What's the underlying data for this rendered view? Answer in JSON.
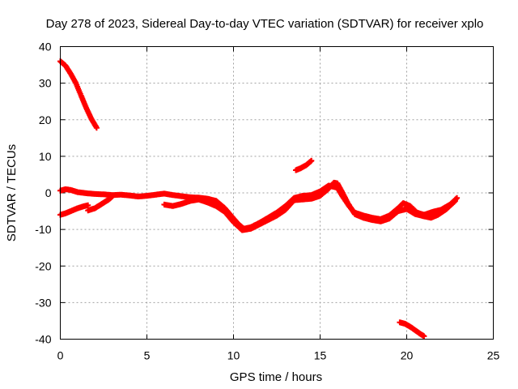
{
  "chart_data": {
    "type": "scatter",
    "title": "Day 278 of 2023, Sidereal Day-to-day VTEC variation (SDTVAR) for receiver xplo",
    "xlabel": "GPS time / hours",
    "ylabel": "SDTVAR / TECUs",
    "xlim": [
      0,
      25
    ],
    "ylim": [
      -40,
      40
    ],
    "xticks": [
      0,
      5,
      10,
      15,
      20,
      25
    ],
    "yticks": [
      -40,
      -30,
      -20,
      -10,
      0,
      10,
      20,
      30,
      40
    ],
    "xtick_labels": [
      "0",
      "5",
      "10",
      "15",
      "20",
      "25"
    ],
    "ytick_labels": [
      "-40",
      "-30",
      "-20",
      "-10",
      "0",
      "10",
      "20",
      "30",
      "40"
    ],
    "grid": true,
    "marker": "+",
    "color": "#ff0000",
    "series": [
      {
        "name": "arc-high-decreasing",
        "points": [
          [
            0.0,
            36.0
          ],
          [
            0.3,
            34.8
          ],
          [
            0.6,
            32.6
          ],
          [
            0.9,
            30.0
          ],
          [
            1.2,
            26.6
          ],
          [
            1.5,
            23.2
          ],
          [
            1.8,
            20.2
          ],
          [
            2.1,
            17.8
          ]
        ]
      },
      {
        "name": "arc-main-upper",
        "points": [
          [
            0.0,
            0.6
          ],
          [
            0.3,
            1.0
          ],
          [
            0.6,
            0.8
          ],
          [
            1.0,
            0.2
          ],
          [
            1.5,
            -0.1
          ],
          [
            2.0,
            -0.3
          ],
          [
            2.5,
            -0.4
          ],
          [
            3.0,
            -0.6
          ],
          [
            3.5,
            -0.5
          ],
          [
            4.0,
            -0.7
          ],
          [
            4.5,
            -1.0
          ],
          [
            5.0,
            -0.8
          ],
          [
            5.5,
            -0.5
          ],
          [
            6.0,
            -0.2
          ],
          [
            6.5,
            -0.6
          ],
          [
            7.0,
            -0.9
          ],
          [
            7.5,
            -1.2
          ],
          [
            8.0,
            -1.3
          ],
          [
            8.5,
            -1.6
          ],
          [
            9.0,
            -2.2
          ],
          [
            9.5,
            -4.2
          ],
          [
            10.0,
            -7.0
          ],
          [
            10.3,
            -8.6
          ],
          [
            10.6,
            -9.8
          ],
          [
            11.0,
            -9.4
          ],
          [
            11.5,
            -8.2
          ],
          [
            12.0,
            -6.8
          ],
          [
            12.5,
            -5.4
          ],
          [
            13.0,
            -3.6
          ],
          [
            13.5,
            -1.4
          ],
          [
            14.0,
            -0.8
          ],
          [
            14.5,
            -0.6
          ],
          [
            15.0,
            0.4
          ],
          [
            15.5,
            2.0
          ],
          [
            16.0,
            1.4
          ],
          [
            16.3,
            -1.0
          ],
          [
            16.7,
            -3.8
          ],
          [
            17.0,
            -5.4
          ],
          [
            17.5,
            -6.2
          ],
          [
            18.0,
            -6.8
          ],
          [
            18.5,
            -7.2
          ],
          [
            19.0,
            -6.2
          ],
          [
            19.5,
            -4.2
          ],
          [
            19.8,
            -2.8
          ],
          [
            20.2,
            -3.6
          ],
          [
            20.6,
            -5.4
          ],
          [
            21.0,
            -6.0
          ],
          [
            21.5,
            -5.2
          ],
          [
            22.0,
            -4.6
          ],
          [
            22.5,
            -3.2
          ],
          [
            22.9,
            -1.4
          ]
        ]
      },
      {
        "name": "arc-main-lower",
        "points": [
          [
            6.0,
            -3.2
          ],
          [
            6.5,
            -3.6
          ],
          [
            7.0,
            -3.0
          ],
          [
            7.5,
            -2.2
          ],
          [
            8.0,
            -1.8
          ],
          [
            8.5,
            -2.6
          ],
          [
            9.0,
            -3.6
          ],
          [
            9.5,
            -5.2
          ],
          [
            10.0,
            -8.0
          ],
          [
            10.5,
            -10.2
          ],
          [
            11.0,
            -9.8
          ],
          [
            11.5,
            -8.6
          ],
          [
            12.0,
            -7.4
          ],
          [
            12.5,
            -6.2
          ],
          [
            13.0,
            -4.6
          ],
          [
            13.5,
            -2.0
          ],
          [
            14.0,
            -1.8
          ],
          [
            14.5,
            -1.6
          ],
          [
            15.0,
            -0.8
          ],
          [
            15.5,
            1.2
          ],
          [
            15.8,
            2.8
          ],
          [
            16.0,
            2.6
          ],
          [
            16.3,
            0.0
          ],
          [
            16.6,
            -2.8
          ],
          [
            17.0,
            -5.8
          ],
          [
            17.5,
            -6.8
          ],
          [
            18.0,
            -7.4
          ],
          [
            18.5,
            -7.8
          ],
          [
            19.0,
            -7.0
          ],
          [
            19.5,
            -5.0
          ],
          [
            20.0,
            -4.4
          ],
          [
            20.5,
            -5.8
          ],
          [
            21.0,
            -6.4
          ],
          [
            21.4,
            -6.8
          ],
          [
            21.8,
            -6.0
          ],
          [
            22.3,
            -4.4
          ],
          [
            22.8,
            -2.2
          ]
        ]
      },
      {
        "name": "arc-early-low",
        "points": [
          [
            0.0,
            -6.0
          ],
          [
            0.3,
            -5.6
          ],
          [
            0.6,
            -5.0
          ],
          [
            1.0,
            -4.2
          ],
          [
            1.4,
            -3.6
          ],
          [
            1.6,
            -3.4
          ]
        ]
      },
      {
        "name": "arc-early-mid",
        "points": [
          [
            1.6,
            -4.8
          ],
          [
            2.0,
            -4.2
          ],
          [
            2.4,
            -3.0
          ],
          [
            2.8,
            -1.8
          ],
          [
            3.0,
            -1.0
          ]
        ]
      },
      {
        "name": "arc-small-positive",
        "points": [
          [
            13.6,
            6.2
          ],
          [
            13.9,
            6.8
          ],
          [
            14.2,
            7.6
          ],
          [
            14.5,
            8.8
          ]
        ]
      },
      {
        "name": "arc-low-negative",
        "points": [
          [
            19.6,
            -35.4
          ],
          [
            19.9,
            -35.8
          ],
          [
            20.2,
            -36.6
          ],
          [
            20.5,
            -37.6
          ],
          [
            20.8,
            -38.6
          ],
          [
            21.0,
            -39.2
          ]
        ]
      }
    ]
  }
}
